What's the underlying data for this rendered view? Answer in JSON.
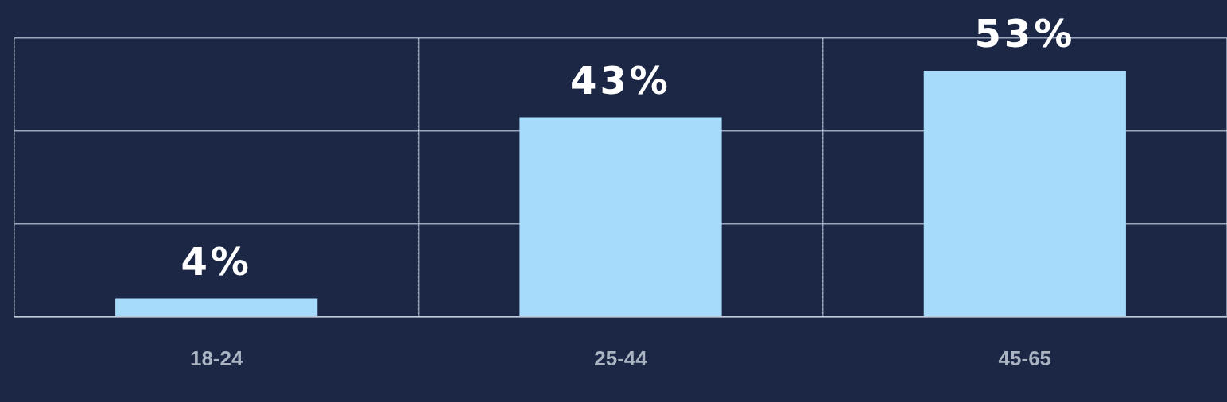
{
  "chart_data": {
    "type": "bar",
    "categories": [
      "18-24",
      "25-44",
      "45-65"
    ],
    "values": [
      4,
      43,
      53
    ],
    "value_labels": [
      "4%",
      "43%",
      "53%"
    ],
    "color": "#a6dbfc",
    "ylim": [
      0,
      60
    ],
    "yticks": [
      {
        "value": 0,
        "label": null
      },
      {
        "value": 20,
        "label": null
      },
      {
        "value": 40,
        "label": null
      },
      {
        "value": 60,
        "label": null
      }
    ],
    "grid": true
  }
}
